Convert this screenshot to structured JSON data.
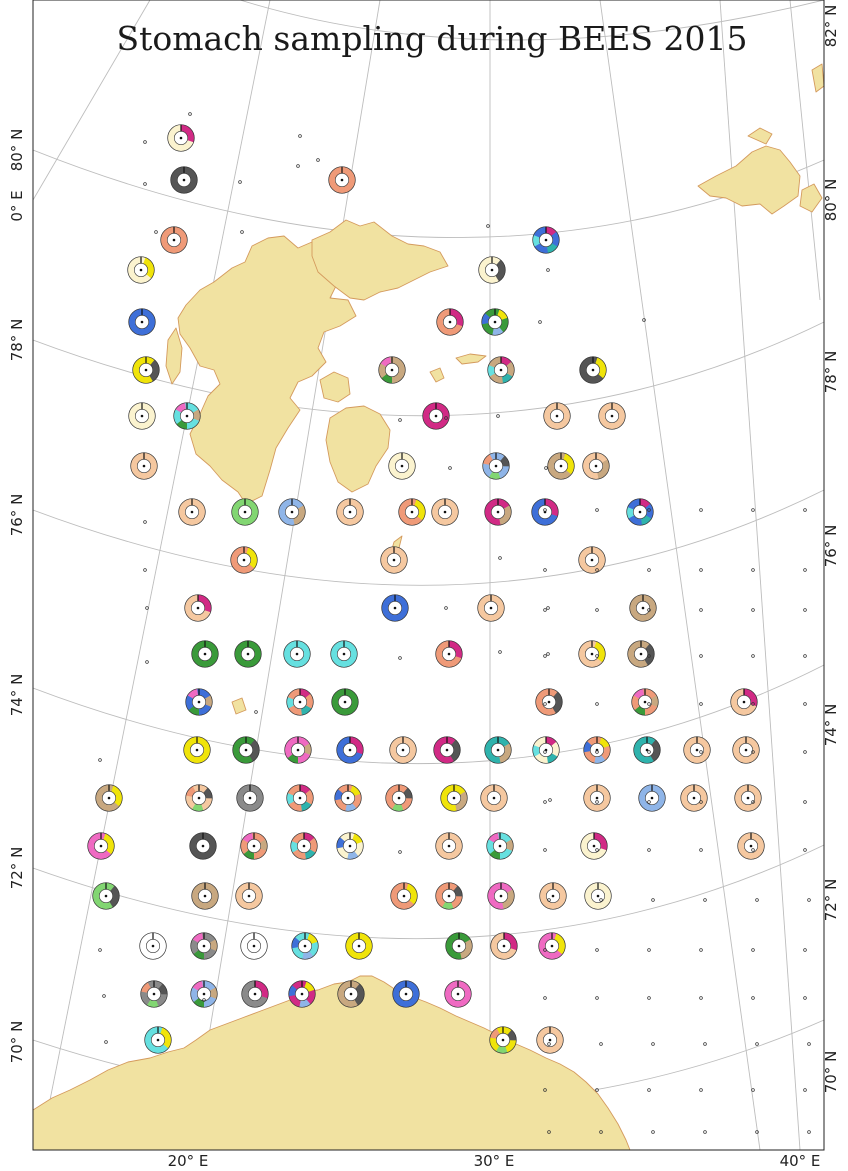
{
  "title": "Stomach sampling during BEES 2015",
  "axes": {
    "left_lat_labels": [
      "80° N",
      "78° N",
      "76° N",
      "74° N",
      "72° N",
      "70° N"
    ],
    "left_lon_label": "0° E",
    "right_lat_labels": [
      "82° N",
      "80° N",
      "78° N",
      "76° N",
      "74° N",
      "72° N",
      "70° N"
    ],
    "bottom_lon_labels": [
      "20° E",
      "30° E",
      "40° E"
    ]
  },
  "colors": {
    "land": "#f1e2a1",
    "coast": "#d49a5d",
    "grid": "#bdbdbd",
    "prey": {
      "cream": "#fbf3cf",
      "peach": "#f5c8a0",
      "salmon": "#ef9a78",
      "blue": "#3e6fd8",
      "lightblue": "#8fb5e8",
      "teal": "#2fb3ad",
      "cyan": "#66e0e0",
      "green": "#3a9a3a",
      "lightgreen": "#82d672",
      "yellow": "#f0e40a",
      "magenta": "#d12a85",
      "pink": "#ef6ac2",
      "gray": "#8a8a8a",
      "darkgray": "#555555",
      "tan": "#c8a880",
      "white": "#ffffff"
    }
  },
  "chart_data": {
    "type": "map",
    "title": "Stomach sampling during BEES 2015",
    "station_rows": [
      {
        "lat_row": 1,
        "stations": [
          [
            "cream",
            2
          ]
        ]
      },
      {
        "lat_row": 2,
        "stations": [
          [
            "darkgray",
            1
          ],
          [
            "salmon",
            1
          ]
        ]
      },
      {
        "lat_row": 3,
        "stations": [
          [
            "salmon",
            1
          ],
          [
            "blue",
            3
          ]
        ]
      },
      {
        "lat_row": 4,
        "stations": [
          [
            "cream",
            2
          ],
          [
            "cream",
            2
          ]
        ]
      },
      {
        "lat_row": 5,
        "stations": [
          [
            "blue",
            1
          ],
          [
            "salmon",
            2
          ],
          [
            "green",
            3
          ]
        ]
      },
      {
        "lat_row": 6,
        "stations": [
          [
            "yellow",
            2
          ],
          [
            "tan",
            3
          ],
          [
            "tan",
            3
          ],
          [
            "darkgray",
            2
          ]
        ]
      },
      {
        "lat_row": 7,
        "stations": [
          [
            "cream",
            1
          ],
          [
            "cyan",
            3
          ],
          [
            "magenta",
            2
          ],
          [
            "peach",
            1
          ],
          [
            "peach",
            1
          ]
        ]
      },
      {
        "lat_row": 8,
        "stations": [
          [
            "peach",
            1
          ],
          [
            "cream",
            1
          ],
          [
            "tan",
            2
          ],
          [
            "lightblue",
            3
          ],
          [
            "peach",
            2
          ]
        ]
      },
      {
        "lat_row": 9,
        "stations": [
          [
            "blue",
            3
          ],
          [
            "peach",
            1
          ],
          [
            "lightgreen",
            1
          ],
          [
            "lightblue",
            2
          ],
          [
            "peach",
            1
          ],
          [
            "salmon",
            2
          ],
          [
            "peach",
            1
          ],
          [
            "magenta",
            2
          ],
          [
            "blue",
            2
          ]
        ]
      },
      {
        "lat_row": 10,
        "stations": [
          [
            "salmon",
            2
          ],
          [
            "peach",
            1
          ],
          [
            "peach",
            1
          ]
        ]
      },
      {
        "lat_row": 11,
        "stations": [
          [
            "peach",
            2
          ],
          [
            "blue",
            1
          ],
          [
            "peach",
            1
          ],
          [
            "tan",
            2
          ]
        ]
      },
      {
        "lat_row": 12,
        "stations": [
          [
            "green",
            1
          ],
          [
            "green",
            1
          ],
          [
            "cyan",
            1
          ],
          [
            "cyan",
            1
          ],
          [
            "salmon",
            2
          ],
          [
            "peach",
            2
          ],
          [
            "tan",
            2
          ]
        ]
      },
      {
        "lat_row": 13,
        "stations": [
          [
            "blue",
            3
          ],
          [
            "salmon",
            3
          ],
          [
            "green",
            1
          ],
          [
            "salmon",
            2
          ],
          [
            "salmon",
            3
          ],
          [
            "peach",
            2
          ]
        ]
      },
      {
        "lat_row": 14,
        "stations": [
          [
            "yellow",
            1
          ],
          [
            "green",
            2
          ],
          [
            "pink",
            3
          ],
          [
            "blue",
            2
          ],
          [
            "peach",
            1
          ],
          [
            "magenta",
            2
          ],
          [
            "teal",
            2
          ],
          [
            "cream",
            3
          ],
          [
            "salmon",
            3
          ],
          [
            "teal",
            2
          ],
          [
            "peach",
            1
          ],
          [
            "peach",
            1
          ]
        ]
      },
      {
        "lat_row": 15,
        "stations": [
          [
            "tan",
            2
          ],
          [
            "peach",
            3
          ],
          [
            "gray",
            1
          ],
          [
            "salmon",
            3
          ],
          [
            "salmon",
            3
          ],
          [
            "salmon",
            3
          ],
          [
            "yellow",
            2
          ],
          [
            "peach",
            1
          ],
          [
            "peach",
            1
          ],
          [
            "lightblue",
            1
          ],
          [
            "peach",
            1
          ],
          [
            "peach",
            1
          ]
        ]
      },
      {
        "lat_row": 16,
        "stations": [
          [
            "pink",
            2
          ],
          [
            "darkgray",
            1
          ],
          [
            "salmon",
            3
          ],
          [
            "salmon",
            3
          ],
          [
            "cream",
            3
          ],
          [
            "peach",
            1
          ],
          [
            "cyan",
            3
          ],
          [
            "cream",
            2
          ],
          [
            "peach",
            1
          ]
        ]
      },
      {
        "lat_row": 17,
        "stations": [
          [
            "lightgreen",
            2
          ],
          [
            "tan",
            1
          ],
          [
            "peach",
            1
          ],
          [
            "salmon",
            2
          ],
          [
            "salmon",
            3
          ],
          [
            "pink",
            2
          ],
          [
            "peach",
            1
          ],
          [
            "cream",
            1
          ]
        ]
      },
      {
        "lat_row": 18,
        "stations": [
          [
            "white",
            1
          ],
          [
            "gray",
            3
          ],
          [
            "white",
            1
          ],
          [
            "cyan",
            3
          ],
          [
            "yellow",
            1
          ],
          [
            "green",
            2
          ],
          [
            "peach",
            2
          ],
          [
            "pink",
            2
          ]
        ]
      },
      {
        "lat_row": 19,
        "stations": [
          [
            "gray",
            3
          ],
          [
            "lightblue",
            3
          ],
          [
            "gray",
            2
          ],
          [
            "magenta",
            3
          ],
          [
            "tan",
            2
          ],
          [
            "blue",
            1
          ],
          [
            "pink",
            1
          ]
        ]
      },
      {
        "lat_row": 20,
        "stations": [
          [
            "cyan",
            2
          ],
          [
            "yellow",
            3
          ],
          [
            "peach",
            1
          ]
        ]
      }
    ],
    "legend": "none"
  }
}
